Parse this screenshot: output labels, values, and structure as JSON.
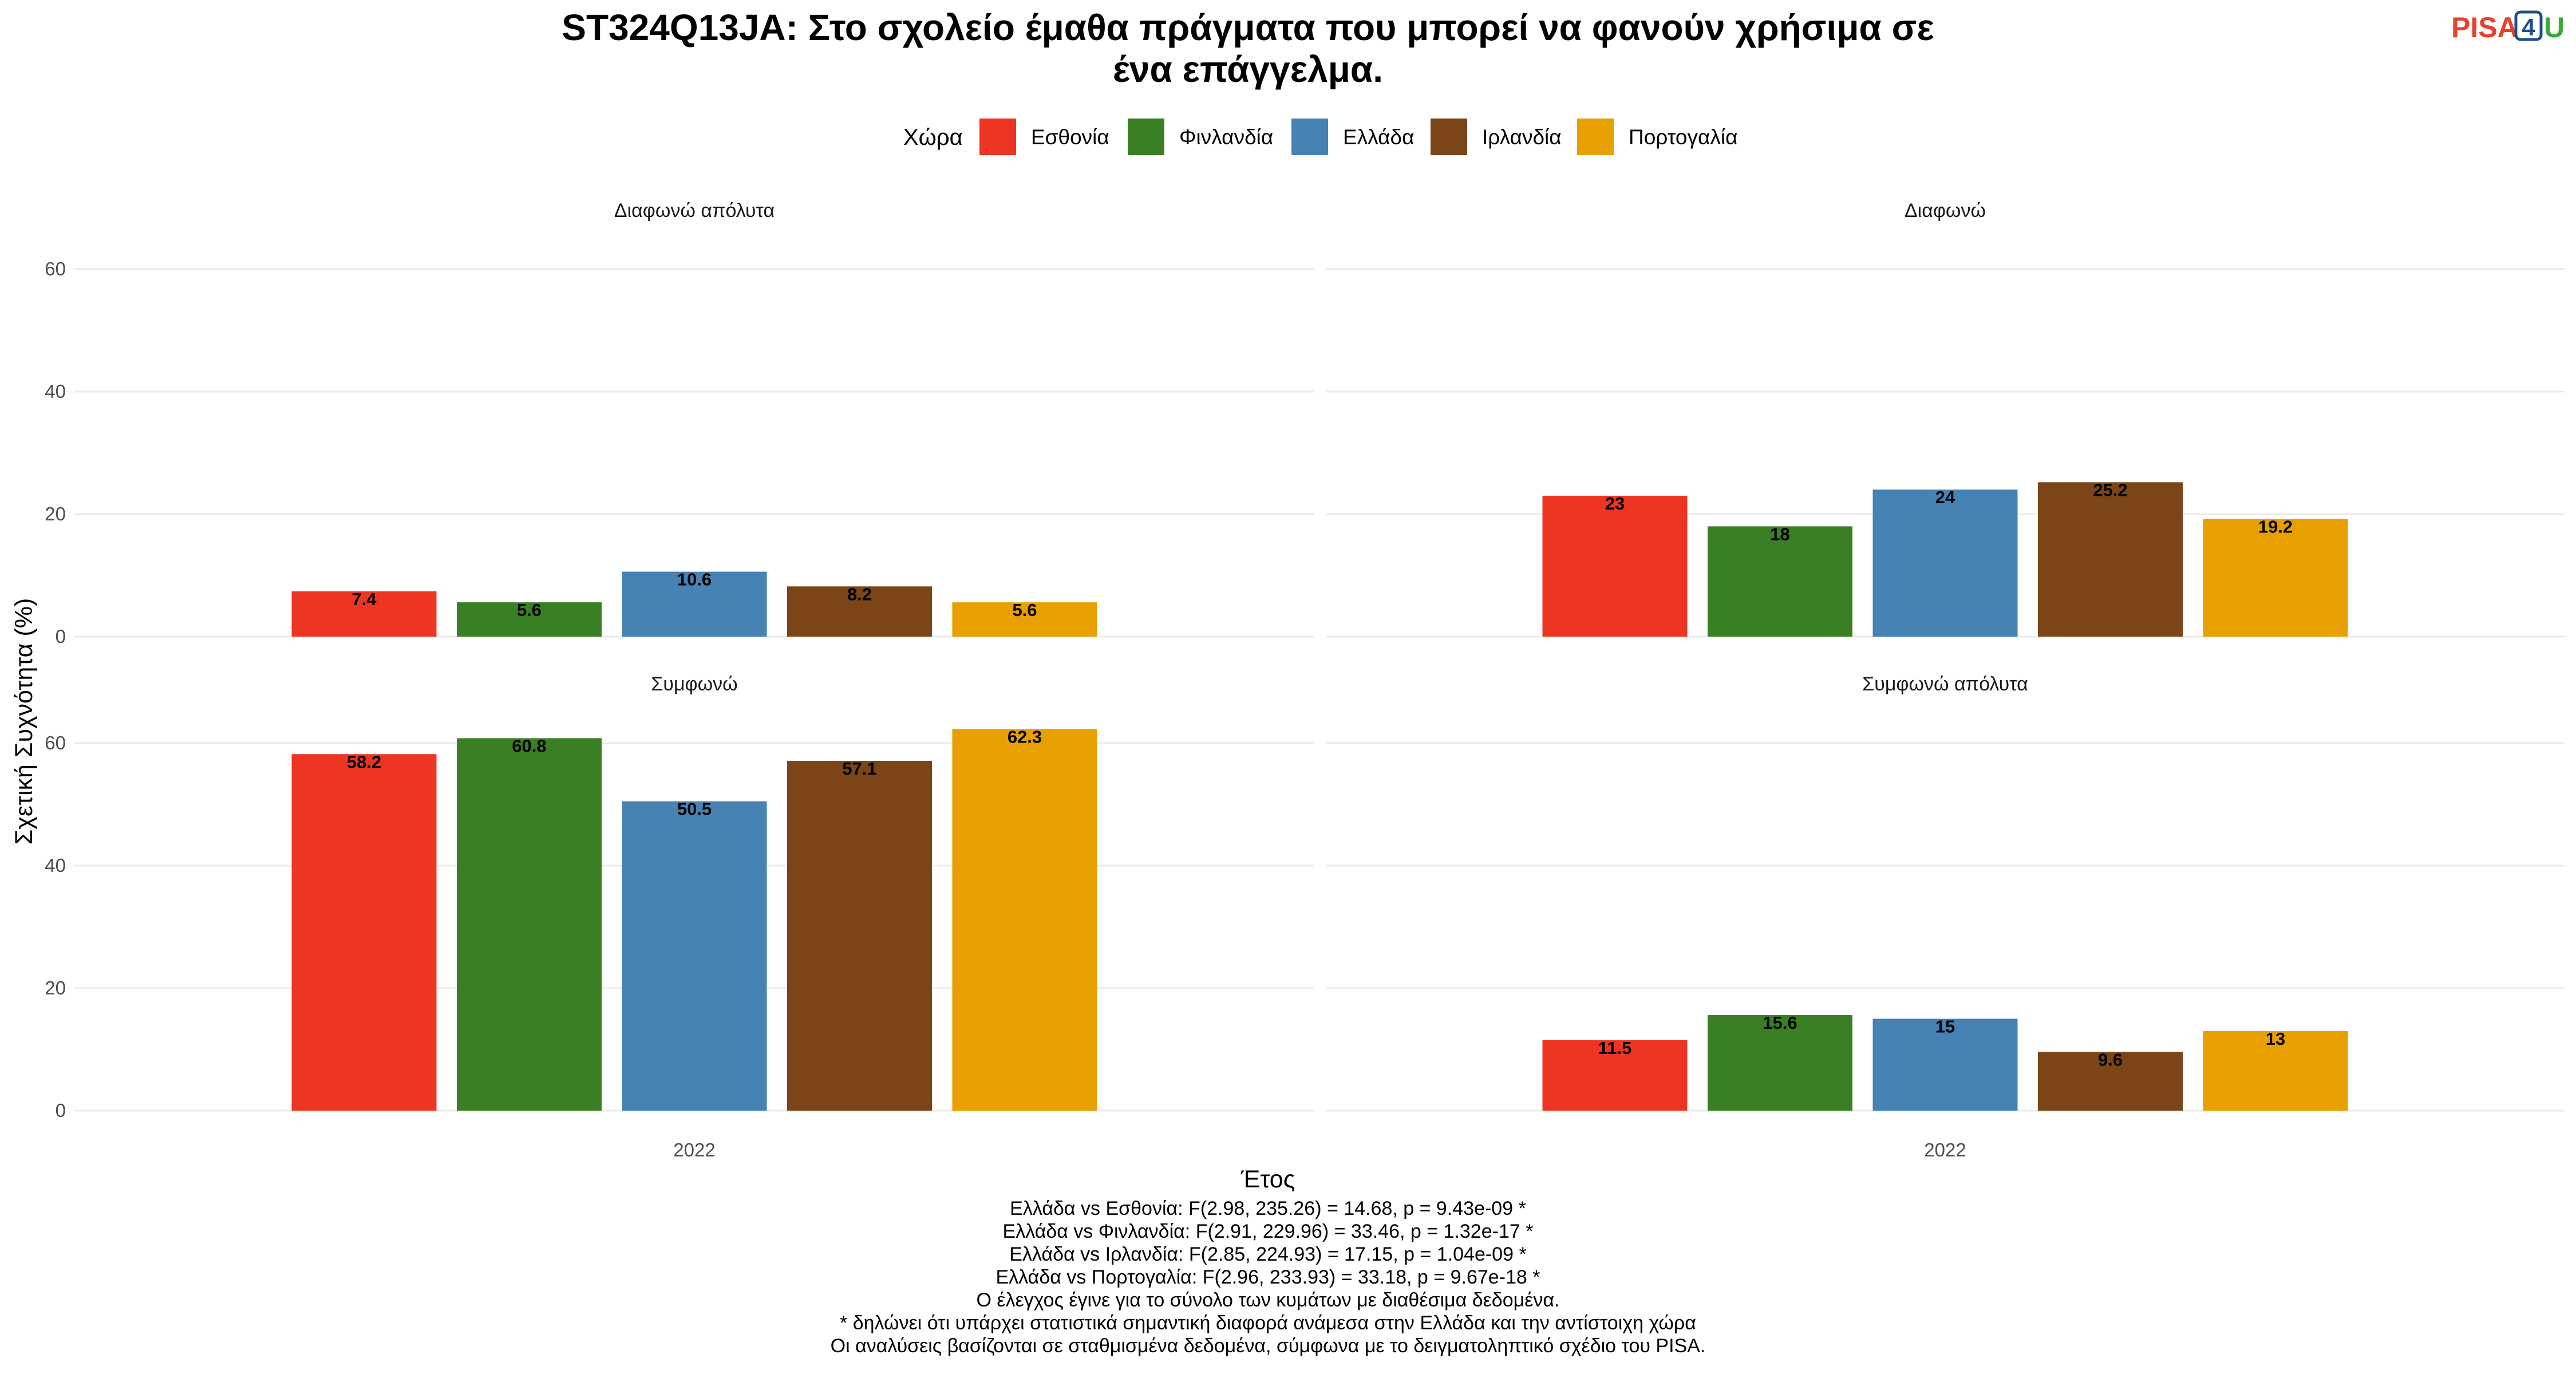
{
  "title_line1": "ST324Q13JA: Στο σχολείο έμαθα πράγματα που μπορεί να φανούν χρήσιμα σε",
  "title_line2": "ένα επάγγελμα.",
  "logo": {
    "part1": "PISA",
    "part2": "4",
    "part3": "U",
    "color1": "#e8412c",
    "color2": "#1f4e8c",
    "color3": "#3aaa35"
  },
  "legend": {
    "title": "Χώρα",
    "items": [
      {
        "label": "Εσθονία",
        "color": "#EE3524"
      },
      {
        "label": "Φινλανδία",
        "color": "#3A7F23"
      },
      {
        "label": "Ελλάδα",
        "color": "#4682B4"
      },
      {
        "label": "Ιρλανδία",
        "color": "#7B4517"
      },
      {
        "label": "Πορτογαλία",
        "color": "#E8A000"
      }
    ]
  },
  "axes": {
    "ylabel": "Σχετική Συχνότητα (%)",
    "xlabel": "Έτος"
  },
  "chart_data": {
    "type": "bar",
    "x_category": "2022",
    "ylim": [
      0,
      60
    ],
    "yticks": [
      0,
      20,
      40,
      60
    ],
    "series_names": [
      "Εσθονία",
      "Φινλανδία",
      "Ελλάδα",
      "Ιρλανδία",
      "Πορτογαλία"
    ],
    "panels": [
      {
        "name": "Διαφωνώ απόλυτα",
        "values": [
          7.4,
          5.6,
          10.6,
          8.2,
          5.6
        ],
        "labels": [
          "7.4",
          "5.6",
          "10.6",
          "8.2",
          "5.6"
        ]
      },
      {
        "name": "Διαφωνώ",
        "values": [
          23,
          18,
          24,
          25.2,
          19.2
        ],
        "labels": [
          "23",
          "18",
          "24",
          "25.2",
          "19.2"
        ]
      },
      {
        "name": "Συμφωνώ",
        "values": [
          58.2,
          60.8,
          50.5,
          57.1,
          62.3
        ],
        "labels": [
          "58.2",
          "60.8",
          "50.5",
          "57.1",
          "62.3"
        ]
      },
      {
        "name": "Συμφωνώ απόλυτα",
        "values": [
          11.5,
          15.6,
          15,
          9.6,
          13
        ],
        "labels": [
          "11.5",
          "15.6",
          "15",
          "9.6",
          "13"
        ]
      }
    ]
  },
  "captions": [
    "Ελλάδα vs Εσθονία: F(2.98, 235.26) = 14.68, p = 9.43e-09 *",
    "Ελλάδα vs Φινλανδία: F(2.91, 229.96) = 33.46, p = 1.32e-17 *",
    "Ελλάδα vs Ιρλανδία: F(2.85, 224.93) = 17.15, p = 1.04e-09 *",
    "Ελλάδα vs Πορτογαλία: F(2.96, 233.93) = 33.18, p = 9.67e-18 *",
    "Ο έλεγχος έγινε για το σύνολο των κυμάτων με διαθέσιμα δεδομένα.",
    "* δηλώνει ότι υπάρχει στατιστικά σημαντική διαφορά ανάμεσα στην Ελλάδα και την αντίστοιχη χώρα",
    "Οι αναλύσεις βασίζονται σε σταθμισμένα δεδομένα, σύμφωνα με το δειγματοληπτικό σχέδιο του PISA."
  ]
}
